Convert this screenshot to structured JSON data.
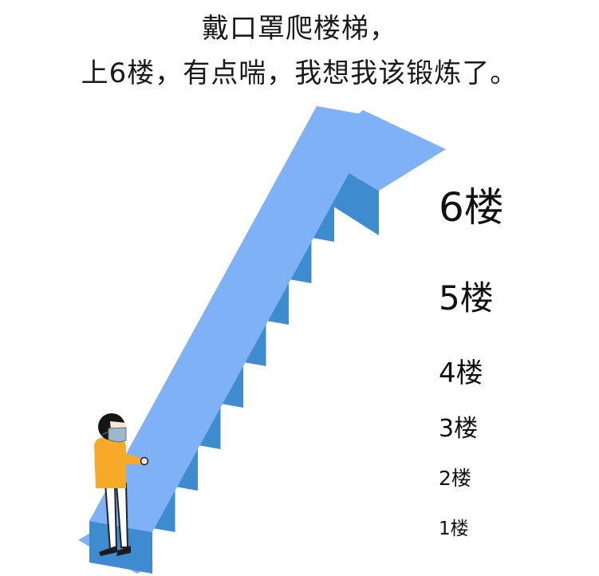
{
  "caption": {
    "line1": "戴口罩爬楼梯，",
    "line2": "上6楼，有点喘，我想我该锻炼了。"
  },
  "floors": [
    {
      "label": "6楼",
      "level": 6
    },
    {
      "label": "5楼",
      "level": 5
    },
    {
      "label": "4楼",
      "level": 4
    },
    {
      "label": "3楼",
      "level": 3
    },
    {
      "label": "2楼",
      "level": 2
    },
    {
      "label": "1楼",
      "level": 1
    }
  ],
  "colors": {
    "step_top": "#7EB1F5",
    "step_riser": "#3E8BD0",
    "step_side": "#2F78BE",
    "shirt": "#F7A928",
    "mask": "#9FB7CC",
    "hair": "#151515",
    "skin": "#F9E6DA"
  }
}
